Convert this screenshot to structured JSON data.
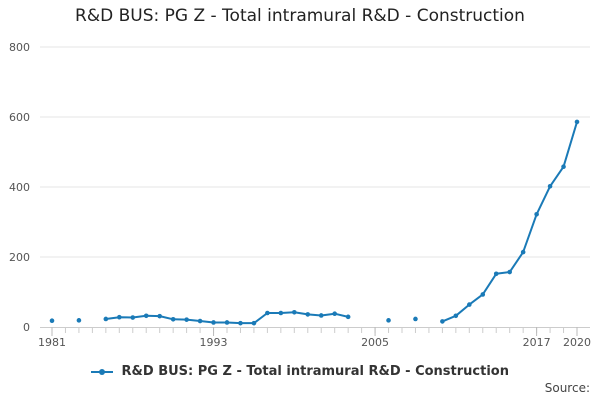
{
  "chart_data": {
    "type": "line",
    "title": "R&D BUS: PG Z - Total intramural R&D - Construction",
    "xlabel": "",
    "ylabel": "",
    "ylim": [
      0,
      800
    ],
    "yticks": [
      "0",
      "200",
      "400",
      "600",
      "800"
    ],
    "xlim": [
      1981,
      2020
    ],
    "xticks": [
      "1981",
      "1993",
      "2005",
      "2017",
      "2020"
    ],
    "grid": true,
    "legend_position": "bottom",
    "series": [
      {
        "name": "R&D BUS: PG Z - Total intramural R&D - Construction",
        "color": "#1a7ab7",
        "x": [
          1981,
          1982,
          1983,
          1984,
          1985,
          1986,
          1987,
          1988,
          1989,
          1990,
          1991,
          1992,
          1993,
          1994,
          1995,
          1996,
          1997,
          1998,
          1999,
          2000,
          2001,
          2002,
          2003,
          2004,
          2005,
          2006,
          2007,
          2008,
          2009,
          2010,
          2011,
          2012,
          2013,
          2014,
          2015,
          2016,
          2017,
          2018,
          2019,
          2020
        ],
        "values": [
          18,
          null,
          19,
          null,
          23,
          28,
          27,
          32,
          31,
          22,
          21,
          17,
          13,
          13,
          11,
          11,
          40,
          40,
          42,
          36,
          33,
          38,
          29,
          null,
          null,
          19,
          null,
          23,
          null,
          16,
          32,
          64,
          93,
          152,
          157,
          214,
          322,
          402,
          458,
          586
        ]
      }
    ]
  },
  "source_label": "Source:"
}
